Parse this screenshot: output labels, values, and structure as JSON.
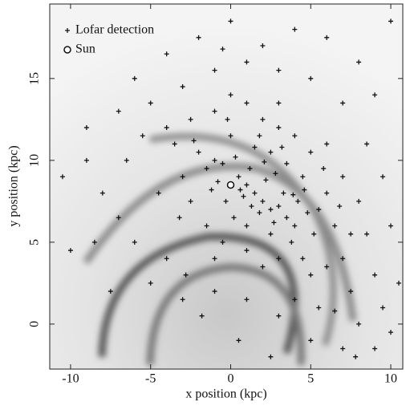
{
  "chart_data": {
    "type": "scatter",
    "xlabel": "x position (kpc)",
    "ylabel": "y position (kpc)",
    "xlim": [
      -11.3,
      10.75
    ],
    "ylim": [
      -2.75,
      19.55
    ],
    "xticks": [
      -10,
      -5,
      0,
      5,
      10
    ],
    "yticks": [
      0,
      5,
      10,
      15
    ],
    "legend": "upper left",
    "series": [
      {
        "name": "Lofar detection",
        "marker": "+",
        "color": "#111111",
        "x": [
          0.5,
          1,
          1.5,
          2,
          2.5,
          3,
          1.2,
          0.8,
          2.2,
          3.5,
          4,
          1.8,
          0.3,
          -0.5,
          -1,
          -1.5,
          -2,
          -0.8,
          2.8,
          3.3,
          4.2,
          4.8,
          5.2,
          5.5,
          3.8,
          2.5,
          1,
          0.2,
          -0.3,
          1.5,
          2.5,
          3.5,
          4.5,
          6,
          6.5,
          7,
          7.5,
          6,
          4.5,
          3,
          2,
          1,
          -0.5,
          -1.5,
          -2.5,
          -3,
          -3.5,
          -4,
          -2.5,
          -1,
          0,
          1,
          2,
          3,
          4,
          5,
          6,
          7,
          8,
          8.5,
          9,
          9.5,
          10,
          8,
          7,
          5,
          3,
          1,
          -1,
          -3,
          -5,
          -4,
          -6,
          -7,
          -8,
          -9,
          -10.5,
          -10,
          -9,
          -7,
          -6,
          -4,
          -2,
          0,
          2,
          4,
          6,
          8,
          10,
          9,
          7,
          5,
          3,
          1,
          -1,
          -3,
          -5,
          -2.8,
          -1.8,
          0.5,
          2.5,
          4,
          5.5,
          6.5,
          7.8,
          10.5,
          10,
          9.5,
          8.5,
          -8.5,
          -6.5,
          -4.5,
          -5.5,
          -3.2,
          0,
          1.8,
          -0.2,
          3.2,
          4.6,
          5.8,
          2.7,
          1.3,
          0.6,
          -1.2,
          3.9,
          2.1,
          -2.3,
          6.8,
          7.5,
          5,
          -1,
          -7.5,
          9,
          -0.5,
          3
        ],
        "y": [
          9,
          8.5,
          8,
          7.5,
          7,
          7.2,
          9.5,
          7.8,
          8.8,
          6.5,
          6,
          6.8,
          10.2,
          9.8,
          10,
          9.5,
          10.5,
          8.7,
          9.2,
          8,
          7.5,
          6.8,
          5.5,
          7,
          5,
          5.5,
          6,
          6.5,
          7.5,
          10.8,
          10.5,
          9.8,
          9,
          8,
          6,
          4,
          2,
          3.5,
          4,
          4,
          3.5,
          4.5,
          5,
          6,
          7.5,
          9,
          11,
          12,
          12.5,
          13,
          14,
          13.5,
          12.5,
          12,
          11.5,
          10.5,
          11,
          9,
          7.5,
          5.5,
          3,
          1,
          -0.5,
          0,
          -1.5,
          -1,
          0.5,
          1.5,
          2,
          1.5,
          2.5,
          4,
          5,
          6.5,
          8,
          10,
          9,
          4.5,
          12,
          13,
          15,
          16.5,
          17.5,
          18.5,
          17,
          18,
          17.5,
          16,
          18.5,
          14,
          13.5,
          15,
          15.5,
          16,
          15.5,
          14.5,
          13.5,
          3,
          0.5,
          -1,
          -2,
          1.5,
          1,
          0.8,
          -2,
          2.5,
          6,
          9,
          11,
          5,
          10,
          8,
          11.5,
          6.5,
          11.5,
          11.5,
          12.5,
          10.8,
          8.2,
          9.5,
          6.2,
          7.2,
          8.2,
          8.2,
          7.9,
          9.9,
          11.2,
          7.2,
          5.5,
          3,
          4,
          2,
          -1.5,
          16.8,
          13.5
        ]
      },
      {
        "name": "Sun",
        "marker": "o",
        "color": "#111111",
        "x": [
          0
        ],
        "y": [
          8.5
        ]
      }
    ]
  }
}
